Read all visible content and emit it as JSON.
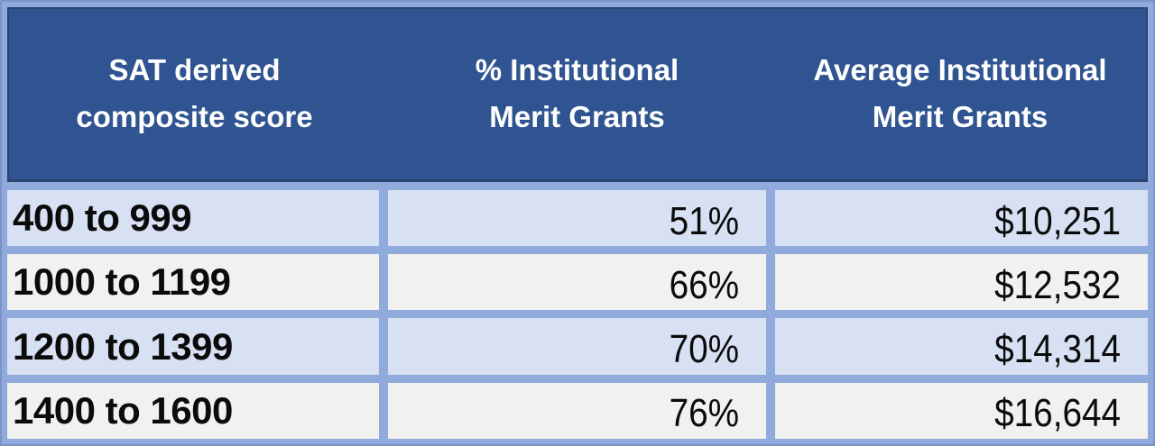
{
  "table": {
    "headers": [
      {
        "label": "SAT derived composite score",
        "lines": [
          "SAT derived",
          "composite score"
        ]
      },
      {
        "label": "% Institutional Merit Grants",
        "lines": [
          "% Institutional",
          "Merit Grants"
        ]
      },
      {
        "label": "Average Institutional Merit Grants",
        "lines": [
          "Average Institutional",
          "Merit Grants"
        ]
      }
    ],
    "rows": [
      {
        "score_range": "400 to 999",
        "pct_merit_grants": "51%",
        "avg_merit_grant": "$10,251"
      },
      {
        "score_range": "1000 to 1199",
        "pct_merit_grants": "66%",
        "avg_merit_grant": "$12,532"
      },
      {
        "score_range": "1200 to 1399",
        "pct_merit_grants": "70%",
        "avg_merit_grant": "$14,314"
      },
      {
        "score_range": "1400 to 1600",
        "pct_merit_grants": "76%",
        "avg_merit_grant": "$16,644"
      }
    ]
  },
  "colors": {
    "grid_blue": "#8FAADB",
    "outer_outline": "#7B93C6",
    "header_bg": "#2F5491",
    "header_outline": "#2A4470",
    "header_text": "#FFFFFF",
    "row_light_blue": "#D7E1F3",
    "row_gray": "#F1F1EF",
    "body_text": "#0B0B0B"
  },
  "chart_data": {
    "type": "table",
    "columns": [
      "SAT derived composite score",
      "% Institutional Merit Grants",
      "Average Institutional Merit Grants"
    ],
    "categories": [
      "400 to 999",
      "1000 to 1199",
      "1200 to 1399",
      "1400 to 1600"
    ],
    "series": [
      {
        "name": "% Institutional Merit Grants",
        "values": [
          51,
          66,
          70,
          76
        ],
        "unit": "%"
      },
      {
        "name": "Average Institutional Merit Grants",
        "values": [
          10251,
          12532,
          14314,
          16644
        ],
        "unit": "$"
      }
    ],
    "rows": [
      [
        "400 to 999",
        "51%",
        "$10,251"
      ],
      [
        "1000 to 1199",
        "66%",
        "$12,532"
      ],
      [
        "1200 to 1399",
        "70%",
        "$14,314"
      ],
      [
        "1400 to 1600",
        "76%",
        "$16,644"
      ]
    ],
    "layout": "header row dark blue; data rows alternate light blue / light gray; column 1 left-aligned bold, columns 2-3 right-aligned"
  }
}
